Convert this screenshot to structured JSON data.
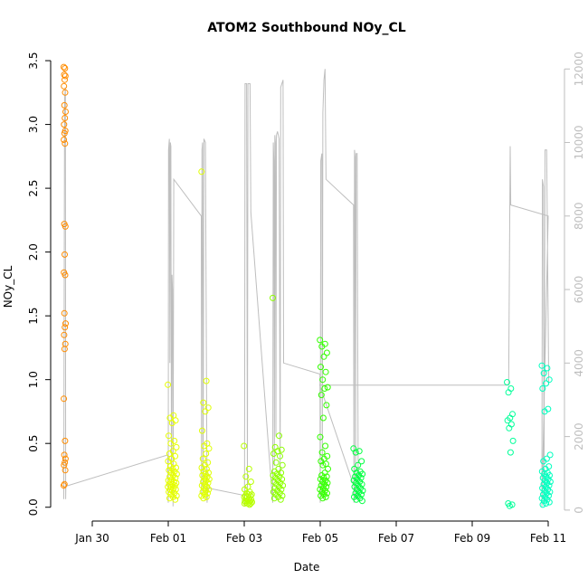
{
  "chart_data": {
    "type": "scatter",
    "title": "ATOM2 Southbound NOy_CL",
    "xlabel": "Date",
    "ylabel": "NOy_CL",
    "xlim": [
      "2017-01-29T00:00",
      "2017-02-11T08:00"
    ],
    "ylim": [
      -0.08,
      3.55
    ],
    "y2lim": [
      -200,
      12400
    ],
    "x_ticks": [
      {
        "label": "Jan 30",
        "date": "2017-01-30"
      },
      {
        "label": "Feb 01",
        "date": "2017-02-01"
      },
      {
        "label": "Feb 03",
        "date": "2017-02-03"
      },
      {
        "label": "Feb 05",
        "date": "2017-02-05"
      },
      {
        "label": "Feb 07",
        "date": "2017-02-07"
      },
      {
        "label": "Feb 09",
        "date": "2017-02-09"
      },
      {
        "label": "Feb 11",
        "date": "2017-02-11"
      }
    ],
    "y_ticks": [
      "0.0",
      "0.5",
      "1.0",
      "1.5",
      "2.0",
      "2.5",
      "3.0",
      "3.5"
    ],
    "y2_ticks": [
      "0",
      "2000",
      "4000",
      "6000",
      "8000",
      "10000",
      "12000"
    ],
    "secondary_series_color": "#bebebe",
    "grid": false,
    "flights": [
      {
        "start": "2017-01-29T06:00",
        "end": "2017-01-29T07:12",
        "color": "#ff8c00",
        "y": [
          3.45,
          3.44,
          3.39,
          3.38,
          3.35,
          3.3,
          3.25,
          3.15,
          3.1,
          3.05,
          3.0,
          2.95,
          2.93,
          2.88,
          2.85,
          2.22,
          2.2,
          1.98,
          1.84,
          1.82,
          1.52,
          1.44,
          1.41,
          1.35,
          1.28,
          1.24,
          0.85,
          0.52,
          0.41,
          0.38,
          0.35,
          0.33,
          0.29,
          0.18,
          0.17
        ]
      },
      {
        "start": "2017-01-31T23:45",
        "end": "2017-02-01T05:30",
        "color": "#e6ff00",
        "y": [
          0.96,
          0.72,
          0.7,
          0.68,
          0.66,
          0.56,
          0.52,
          0.5,
          0.47,
          0.44,
          0.42,
          0.4,
          0.38,
          0.36,
          0.34,
          0.32,
          0.31,
          0.3,
          0.29,
          0.28,
          0.27,
          0.26,
          0.25,
          0.24,
          0.23,
          0.22,
          0.21,
          0.2,
          0.2,
          0.19,
          0.18,
          0.18,
          0.17,
          0.16,
          0.16,
          0.15,
          0.14,
          0.14,
          0.13,
          0.12,
          0.11,
          0.1,
          0.09,
          0.08,
          0.07,
          0.06
        ]
      },
      {
        "start": "2017-02-01T21:00",
        "end": "2017-02-02T02:00",
        "color": "#dfff00",
        "y": [
          2.63,
          0.99,
          0.82,
          0.78,
          0.75,
          0.6,
          0.5,
          0.48,
          0.46,
          0.42,
          0.38,
          0.35,
          0.33,
          0.31,
          0.3,
          0.28,
          0.27,
          0.26,
          0.25,
          0.24,
          0.23,
          0.22,
          0.21,
          0.2,
          0.19,
          0.18,
          0.17,
          0.16,
          0.15,
          0.14,
          0.13,
          0.12,
          0.11,
          0.1,
          0.09,
          0.08,
          0.07
        ]
      },
      {
        "start": "2017-02-02T23:50",
        "end": "2017-02-03T05:00",
        "color": "#b8ff00",
        "y": [
          0.48,
          0.3,
          0.24,
          0.2,
          0.16,
          0.14,
          0.12,
          0.11,
          0.1,
          0.1,
          0.09,
          0.09,
          0.08,
          0.08,
          0.07,
          0.07,
          0.06,
          0.06,
          0.05,
          0.05,
          0.05,
          0.04,
          0.04,
          0.04,
          0.03,
          0.03,
          0.03,
          0.02
        ]
      },
      {
        "start": "2017-02-03T18:00",
        "end": "2017-02-04T00:30",
        "color": "#8dff00",
        "y": [
          1.64,
          0.56,
          0.47,
          0.45,
          0.44,
          0.42,
          0.4,
          0.35,
          0.33,
          0.3,
          0.28,
          0.27,
          0.26,
          0.25,
          0.24,
          0.23,
          0.22,
          0.21,
          0.2,
          0.19,
          0.18,
          0.17,
          0.16,
          0.15,
          0.14,
          0.13,
          0.12,
          0.11,
          0.1,
          0.09,
          0.08,
          0.07,
          0.06
        ]
      },
      {
        "start": "2017-02-04T23:50",
        "end": "2017-02-05T05:00",
        "color": "#33ff00",
        "y": [
          1.31,
          1.28,
          1.26,
          1.21,
          1.18,
          1.1,
          1.06,
          1.0,
          0.94,
          0.93,
          0.88,
          0.8,
          0.7,
          0.55,
          0.48,
          0.43,
          0.4,
          0.38,
          0.36,
          0.34,
          0.33,
          0.3,
          0.27,
          0.25,
          0.24,
          0.23,
          0.22,
          0.21,
          0.2,
          0.19,
          0.18,
          0.17,
          0.16,
          0.15,
          0.14,
          0.13,
          0.12,
          0.11,
          0.1,
          0.09,
          0.08,
          0.07
        ]
      },
      {
        "start": "2017-02-05T21:00",
        "end": "2017-02-06T03:00",
        "color": "#00ff40",
        "y": [
          0.46,
          0.44,
          0.43,
          0.36,
          0.33,
          0.3,
          0.28,
          0.27,
          0.26,
          0.25,
          0.24,
          0.23,
          0.22,
          0.21,
          0.2,
          0.19,
          0.18,
          0.17,
          0.16,
          0.15,
          0.14,
          0.13,
          0.12,
          0.11,
          0.1,
          0.09,
          0.08,
          0.07,
          0.06,
          0.05
        ]
      },
      {
        "start": "2017-02-09T22:00",
        "end": "2017-02-10T02:00",
        "color": "#00ff99",
        "y": [
          0.98,
          0.93,
          0.9,
          0.73,
          0.7,
          0.68,
          0.65,
          0.62,
          0.52,
          0.43,
          0.03,
          0.02,
          0.01
        ]
      },
      {
        "start": "2017-02-10T20:00",
        "end": "2017-02-11T01:30",
        "color": "#00ffbf",
        "y": [
          1.11,
          1.09,
          1.05,
          1.0,
          0.97,
          0.93,
          0.77,
          0.75,
          0.41,
          0.38,
          0.36,
          0.32,
          0.3,
          0.28,
          0.27,
          0.26,
          0.25,
          0.24,
          0.23,
          0.22,
          0.21,
          0.2,
          0.19,
          0.18,
          0.17,
          0.16,
          0.15,
          0.14,
          0.13,
          0.12,
          0.11,
          0.1,
          0.09,
          0.08,
          0.07,
          0.06,
          0.05,
          0.04,
          0.03,
          0.02
        ]
      }
    ],
    "altitude_series": {
      "name": "",
      "points": [
        [
          "2017-01-29T06:00",
          300
        ],
        [
          "2017-01-29T06:30",
          11200
        ],
        [
          "2017-01-29T07:00",
          11500
        ],
        [
          "2017-01-29T07:12",
          300
        ],
        [
          "2017-01-29T07:20",
          650
        ],
        [
          "2017-01-31T23:40",
          1500
        ],
        [
          "2017-02-01T00:00",
          200
        ],
        [
          "2017-02-01T00:10",
          9800
        ],
        [
          "2017-02-01T00:40",
          10100
        ],
        [
          "2017-02-01T01:00",
          4000
        ],
        [
          "2017-02-01T01:20",
          10000
        ],
        [
          "2017-02-01T01:40",
          9900
        ],
        [
          "2017-02-01T02:00",
          1000
        ],
        [
          "2017-02-01T02:20",
          6400
        ],
        [
          "2017-02-01T02:40",
          6000
        ],
        [
          "2017-02-01T03:00",
          100
        ],
        [
          "2017-02-01T03:30",
          9000
        ],
        [
          "2017-02-01T20:50",
          8000
        ],
        [
          "2017-02-01T21:00",
          400
        ],
        [
          "2017-02-01T21:20",
          9800
        ],
        [
          "2017-02-01T21:40",
          10000
        ],
        [
          "2017-02-01T22:00",
          500
        ],
        [
          "2017-02-01T22:30",
          10100
        ],
        [
          "2017-02-01T23:30",
          10000
        ],
        [
          "2017-02-02T00:30",
          200
        ],
        [
          "2017-02-02T01:00",
          600
        ],
        [
          "2017-02-03T00:00",
          400
        ],
        [
          "2017-02-03T00:10",
          100
        ],
        [
          "2017-02-03T00:30",
          11600
        ],
        [
          "2017-02-03T01:30",
          11600
        ],
        [
          "2017-02-03T02:00",
          600
        ],
        [
          "2017-02-03T02:20",
          11600
        ],
        [
          "2017-02-03T03:40",
          11600
        ],
        [
          "2017-02-03T04:10",
          8100
        ],
        [
          "2017-02-03T18:00",
          200
        ],
        [
          "2017-02-03T18:20",
          10000
        ],
        [
          "2017-02-03T18:40",
          9500
        ],
        [
          "2017-02-03T19:00",
          1200
        ],
        [
          "2017-02-03T19:20",
          10200
        ],
        [
          "2017-02-03T19:40",
          10000
        ],
        [
          "2017-02-03T20:00",
          2000
        ],
        [
          "2017-02-03T20:20",
          10200
        ],
        [
          "2017-02-03T21:00",
          10300
        ],
        [
          "2017-02-03T22:00",
          10100
        ],
        [
          "2017-02-03T22:40",
          1000
        ],
        [
          "2017-02-03T23:00",
          11500
        ],
        [
          "2017-02-04T00:30",
          11700
        ],
        [
          "2017-02-04T00:50",
          4000
        ],
        [
          "2017-02-04T23:50",
          3700
        ],
        [
          "2017-02-05T00:00",
          200
        ],
        [
          "2017-02-05T00:20",
          9500
        ],
        [
          "2017-02-05T01:00",
          9700
        ],
        [
          "2017-02-05T01:20",
          1200
        ],
        [
          "2017-02-05T01:40",
          10800
        ],
        [
          "2017-02-05T02:20",
          11700
        ],
        [
          "2017-02-05T03:00",
          12000
        ],
        [
          "2017-02-05T03:40",
          9000
        ],
        [
          "2017-02-05T21:00",
          8300
        ],
        [
          "2017-02-05T21:20",
          200
        ],
        [
          "2017-02-05T21:40",
          9800
        ],
        [
          "2017-02-05T22:00",
          9600
        ],
        [
          "2017-02-05T22:20",
          300
        ],
        [
          "2017-02-05T22:40",
          9700
        ],
        [
          "2017-02-05T23:20",
          9700
        ],
        [
          "2017-02-06T00:00",
          300
        ],
        [
          "2017-02-04T23:40",
          3400
        ],
        [
          "2017-02-09T23:00",
          3400
        ],
        [
          "2017-02-10T00:00",
          9900
        ],
        [
          "2017-02-10T00:20",
          8300
        ],
        [
          "2017-02-11T00:00",
          8000
        ],
        [
          "2017-02-10T20:00",
          100
        ],
        [
          "2017-02-10T20:20",
          9000
        ],
        [
          "2017-02-10T21:00",
          8800
        ],
        [
          "2017-02-10T21:20",
          200
        ],
        [
          "2017-02-10T22:00",
          9800
        ],
        [
          "2017-02-10T23:00",
          9800
        ],
        [
          "2017-02-11T00:20",
          3400
        ]
      ]
    }
  }
}
